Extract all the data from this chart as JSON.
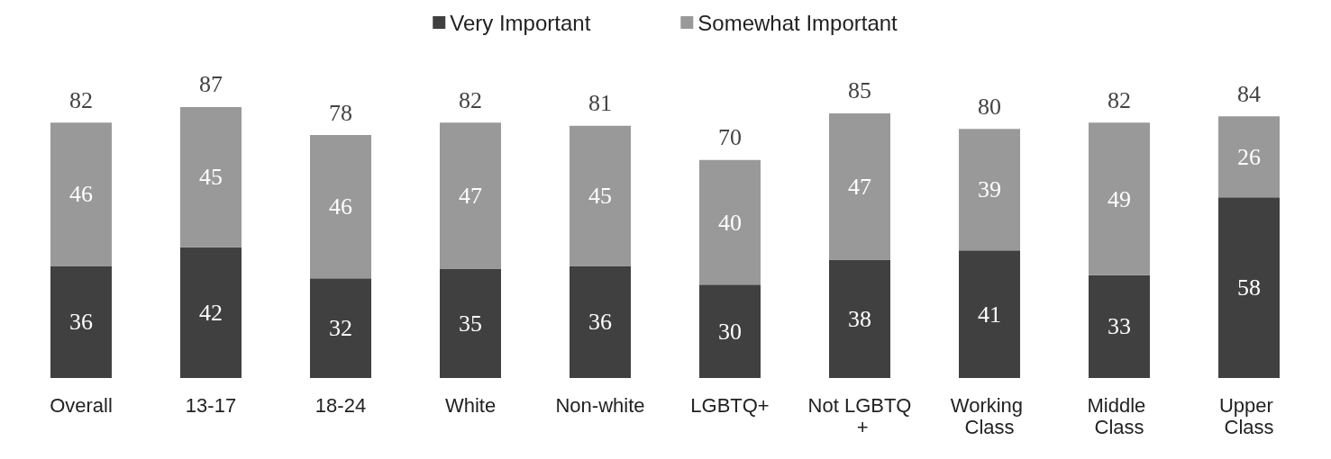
{
  "chart_data": {
    "type": "bar",
    "stacked": true,
    "categories": [
      "Overall",
      "13-17",
      "18-24",
      "White",
      "Non-white",
      "LGBTQ+",
      "Not LGBTQ +",
      "Working Class",
      "Middle Class",
      "Upper Class"
    ],
    "series": [
      {
        "name": "Very Important",
        "color": "#404040",
        "values": [
          36,
          42,
          32,
          35,
          36,
          30,
          38,
          41,
          33,
          58
        ]
      },
      {
        "name": "Somewhat Important",
        "color": "#999999",
        "values": [
          46,
          45,
          46,
          47,
          45,
          40,
          47,
          39,
          49,
          26
        ]
      }
    ],
    "totals": [
      "82",
      "87",
      "78",
      "82",
      "81",
      "70",
      "85",
      "80",
      "82",
      "84"
    ],
    "data_labels": true,
    "legend": "top"
  }
}
